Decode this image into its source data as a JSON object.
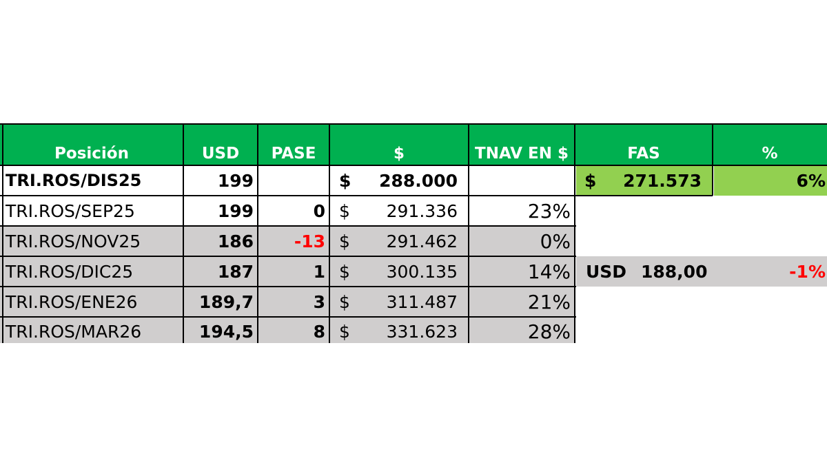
{
  "headers": {
    "posicion": "Posición",
    "usd": "USD",
    "pase": "PASE",
    "peso": "$",
    "tnav": "TNAV EN $",
    "fas": "FAS",
    "pct": "%"
  },
  "rows": [
    {
      "posicion": "TRI.ROS/DIS25",
      "usd": "199",
      "pase": "",
      "cur": "$",
      "amount": "288.000",
      "tnav": ""
    },
    {
      "posicion": "TRI.ROS/SEP25",
      "usd": "199",
      "pase": "0",
      "cur": "$",
      "amount": "291.336",
      "tnav": "23%"
    },
    {
      "posicion": "TRI.ROS/NOV25",
      "usd": "186",
      "pase": "-13",
      "cur": "$",
      "amount": "291.462",
      "tnav": "0%"
    },
    {
      "posicion": "TRI.ROS/DIC25",
      "usd": "187",
      "pase": "1",
      "cur": "$",
      "amount": "300.135",
      "tnav": "14%"
    },
    {
      "posicion": "TRI.ROS/ENE26",
      "usd": "189,7",
      "pase": "3",
      "cur": "$",
      "amount": "311.487",
      "tnav": "21%"
    },
    {
      "posicion": "TRI.ROS/MAR26",
      "usd": "194,5",
      "pase": "8",
      "cur": "$",
      "amount": "331.623",
      "tnav": "28%"
    }
  ],
  "fas": {
    "cur": "$",
    "value": "271.573",
    "pct": "6%"
  },
  "usd_ref": {
    "label": "USD",
    "value": "188,00",
    "pct": "-1%"
  },
  "colors": {
    "header": "#00b050",
    "fas": "#92d050",
    "shaded": "#d0cece",
    "negative": "#ff0000"
  }
}
